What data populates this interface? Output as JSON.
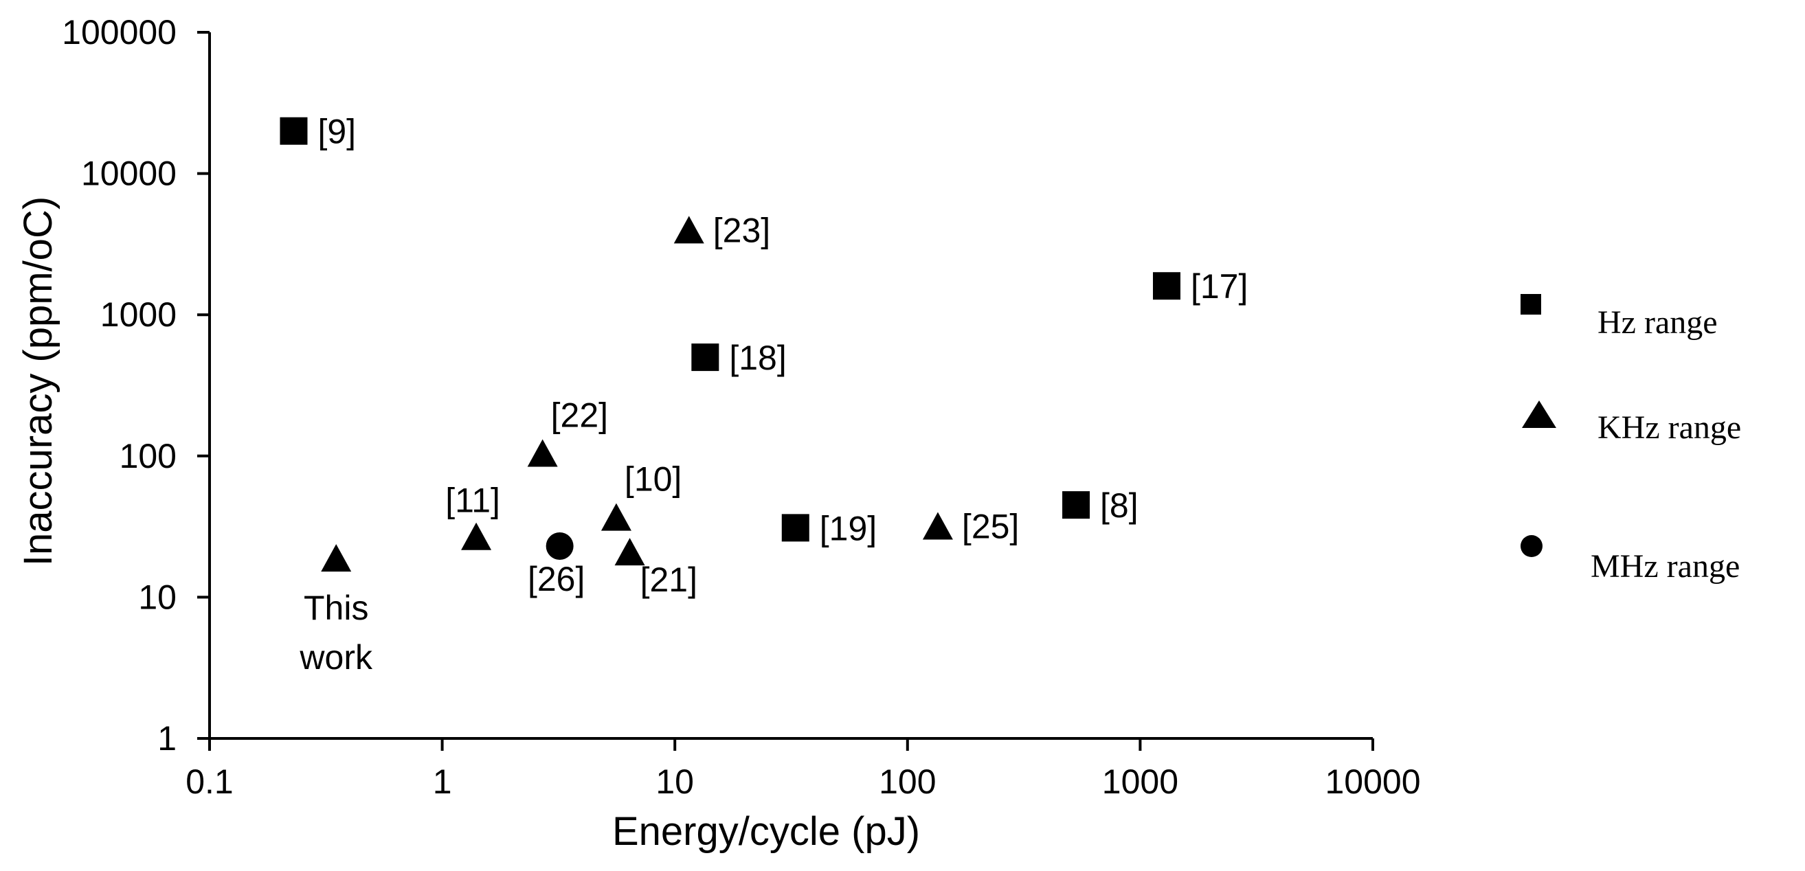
{
  "chart_data": {
    "type": "scatter",
    "title": "",
    "xlabel": "Energy/cycle (pJ)",
    "ylabel": "Inaccuracy (ppm/oC)",
    "xscale": "log",
    "yscale": "log",
    "xlim": [
      0.1,
      10000
    ],
    "ylim": [
      1,
      100000
    ],
    "grid": false,
    "x_ticks": [
      {
        "value": 0.1,
        "label": "0.1"
      },
      {
        "value": 1,
        "label": "1"
      },
      {
        "value": 10,
        "label": "10"
      },
      {
        "value": 100,
        "label": "100"
      },
      {
        "value": 1000,
        "label": "1000"
      },
      {
        "value": 10000,
        "label": "10000"
      }
    ],
    "y_ticks": [
      {
        "value": 1,
        "label": "1"
      },
      {
        "value": 10,
        "label": "10"
      },
      {
        "value": 100,
        "label": "100"
      },
      {
        "value": 1000,
        "label": "1000"
      },
      {
        "value": 10000,
        "label": "10000"
      },
      {
        "value": 100000,
        "label": "100000"
      }
    ],
    "legend": {
      "placement": "right",
      "entries": [
        {
          "marker": "square",
          "label": "Hz range"
        },
        {
          "marker": "triangle",
          "label": "KHz range"
        },
        {
          "marker": "circle",
          "label": "MHz range"
        }
      ]
    },
    "series": [
      {
        "name": "Hz range",
        "marker": "square",
        "points": [
          {
            "x": 0.23,
            "y": 20000,
            "label": "[9]",
            "label_pos": "right"
          },
          {
            "x": 13.5,
            "y": 500,
            "label": "[18]",
            "label_pos": "right"
          },
          {
            "x": 33,
            "y": 31,
            "label": "[19]",
            "label_pos": "right"
          },
          {
            "x": 530,
            "y": 45,
            "label": "[8]",
            "label_pos": "right"
          },
          {
            "x": 1300,
            "y": 1600,
            "label": "[17]",
            "label_pos": "right"
          }
        ]
      },
      {
        "name": "KHz range",
        "marker": "triangle",
        "points": [
          {
            "x": 0.35,
            "y": 19,
            "label": "This work",
            "label_pos": "below"
          },
          {
            "x": 1.4,
            "y": 27,
            "label": "[11]",
            "label_pos": "above-left"
          },
          {
            "x": 2.7,
            "y": 105,
            "label": "[22]",
            "label_pos": "above-right"
          },
          {
            "x": 5.6,
            "y": 37,
            "label": "[10]",
            "label_pos": "above-right"
          },
          {
            "x": 6.4,
            "y": 21,
            "label": "[21]",
            "label_pos": "below-right"
          },
          {
            "x": 11.5,
            "y": 4000,
            "label": "[23]",
            "label_pos": "right"
          },
          {
            "x": 135,
            "y": 32,
            "label": "[25]",
            "label_pos": "right"
          }
        ]
      },
      {
        "name": "MHz range",
        "marker": "circle",
        "points": [
          {
            "x": 3.2,
            "y": 23,
            "label": "[26]",
            "label_pos": "below"
          }
        ]
      }
    ]
  }
}
